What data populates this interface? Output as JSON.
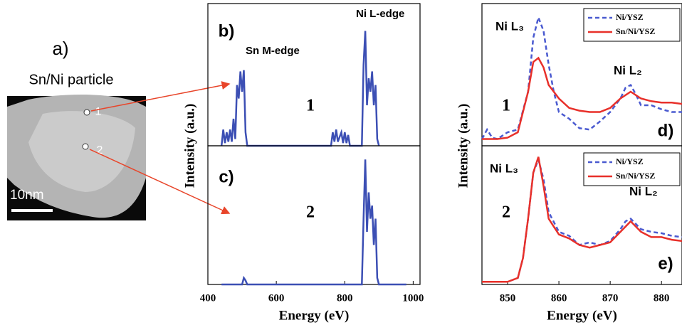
{
  "image_panel": {
    "label": "a)",
    "title": "Sn/Ni particle",
    "points": [
      "1",
      "2"
    ],
    "scale_bar": "10nm"
  },
  "chart_data": [
    {
      "type": "line",
      "label": "b)",
      "ylabel": "Intensity (a.u.)",
      "xlim": [
        400,
        1020
      ],
      "ylim": [
        0,
        1
      ],
      "annotations": [
        "Sn M-edge",
        "Ni L-edge",
        "1"
      ],
      "series": [
        {
          "color": "#3c4fb4",
          "x": [
            440,
            445,
            450,
            455,
            460,
            465,
            470,
            475,
            480,
            485,
            490,
            495,
            500,
            505,
            510,
            515,
            760,
            765,
            770,
            775,
            780,
            790,
            795,
            800,
            805,
            810,
            815,
            850,
            855,
            860,
            865,
            870,
            875,
            880,
            885,
            890,
            895,
            900
          ],
          "values": [
            0,
            0.12,
            0.02,
            0.1,
            0.03,
            0.12,
            0.03,
            0.2,
            0.05,
            0.45,
            0.35,
            0.55,
            0.4,
            0.56,
            0.1,
            0,
            0,
            0.1,
            0.03,
            0.12,
            0.03,
            0.1,
            0.02,
            0.1,
            0.02,
            0.08,
            0,
            0,
            0.6,
            0.85,
            0.3,
            0.5,
            0.4,
            0.55,
            0.3,
            0.45,
            0.05,
            0
          ]
        }
      ]
    },
    {
      "type": "line",
      "label": "c)",
      "xlabel": "Energy (eV)",
      "xlim": [
        400,
        1020
      ],
      "ylim": [
        0,
        1
      ],
      "xticks": [
        400,
        600,
        800,
        1000
      ],
      "annotations": [
        "2"
      ],
      "series": [
        {
          "color": "#3c4fb4",
          "x": [
            440,
            500,
            505,
            510,
            515,
            850,
            855,
            860,
            865,
            870,
            875,
            880,
            885,
            890,
            895,
            900,
            980
          ],
          "values": [
            0,
            0,
            0.05,
            0.03,
            0,
            0,
            0.5,
            0.95,
            0.4,
            0.7,
            0.5,
            0.6,
            0.3,
            0.5,
            0.05,
            0,
            0
          ]
        }
      ]
    },
    {
      "type": "line",
      "label": "d)",
      "ylabel": "Intensity (a.u.)",
      "xlim": [
        845,
        884
      ],
      "ylim": [
        0,
        1
      ],
      "legend": "upper right",
      "annotations": [
        "Ni L₃",
        "Ni L₂",
        "1"
      ],
      "series": [
        {
          "name": "Ni/YSZ",
          "color": "#4a5ad0",
          "dashed": true,
          "x": [
            845,
            846,
            847,
            848,
            850,
            852,
            854,
            855,
            856,
            857,
            858,
            859,
            860,
            862,
            864,
            866,
            868,
            870,
            872,
            873,
            874,
            875,
            876,
            878,
            880,
            882,
            884
          ],
          "values": [
            0.05,
            0.12,
            0.06,
            0.05,
            0.1,
            0.12,
            0.4,
            0.8,
            0.95,
            0.85,
            0.6,
            0.4,
            0.25,
            0.2,
            0.13,
            0.12,
            0.18,
            0.25,
            0.35,
            0.43,
            0.45,
            0.38,
            0.3,
            0.3,
            0.27,
            0.25,
            0.25
          ]
        },
        {
          "name": "Sn/Ni/YSZ",
          "color": "#e8302a",
          "dashed": false,
          "x": [
            845,
            848,
            850,
            852,
            854,
            855,
            856,
            857,
            858,
            860,
            862,
            864,
            866,
            868,
            870,
            872,
            874,
            876,
            878,
            880,
            882,
            884
          ],
          "values": [
            0.05,
            0.05,
            0.06,
            0.1,
            0.4,
            0.62,
            0.65,
            0.58,
            0.45,
            0.35,
            0.28,
            0.26,
            0.25,
            0.25,
            0.28,
            0.35,
            0.4,
            0.35,
            0.33,
            0.32,
            0.32,
            0.31
          ]
        }
      ]
    },
    {
      "type": "line",
      "label": "e)",
      "xlabel": "Energy (eV)",
      "xlim": [
        845,
        884
      ],
      "ylim": [
        0,
        1
      ],
      "xticks": [
        850,
        860,
        870,
        880
      ],
      "legend": "upper right",
      "annotations": [
        "Ni L₃",
        "Ni L₂",
        "2"
      ],
      "series": [
        {
          "name": "Ni/YSZ",
          "color": "#4a5ad0",
          "dashed": true,
          "x": [
            845,
            850,
            852,
            853,
            854,
            855,
            856,
            857,
            858,
            860,
            862,
            864,
            866,
            868,
            870,
            872,
            873,
            874,
            876,
            878,
            880,
            882,
            884
          ],
          "values": [
            0.02,
            0.02,
            0.05,
            0.2,
            0.5,
            0.85,
            0.95,
            0.8,
            0.55,
            0.4,
            0.37,
            0.3,
            0.32,
            0.3,
            0.33,
            0.42,
            0.48,
            0.5,
            0.42,
            0.4,
            0.39,
            0.37,
            0.36
          ]
        },
        {
          "name": "Sn/Ni/YSZ",
          "color": "#e8302a",
          "dashed": false,
          "x": [
            845,
            850,
            852,
            853,
            854,
            855,
            856,
            857,
            858,
            860,
            862,
            864,
            866,
            868,
            870,
            872,
            874,
            876,
            878,
            880,
            882,
            884
          ],
          "values": [
            0.02,
            0.02,
            0.05,
            0.2,
            0.5,
            0.85,
            0.97,
            0.75,
            0.5,
            0.38,
            0.35,
            0.3,
            0.28,
            0.3,
            0.32,
            0.4,
            0.48,
            0.4,
            0.36,
            0.36,
            0.34,
            0.33
          ]
        }
      ]
    }
  ]
}
